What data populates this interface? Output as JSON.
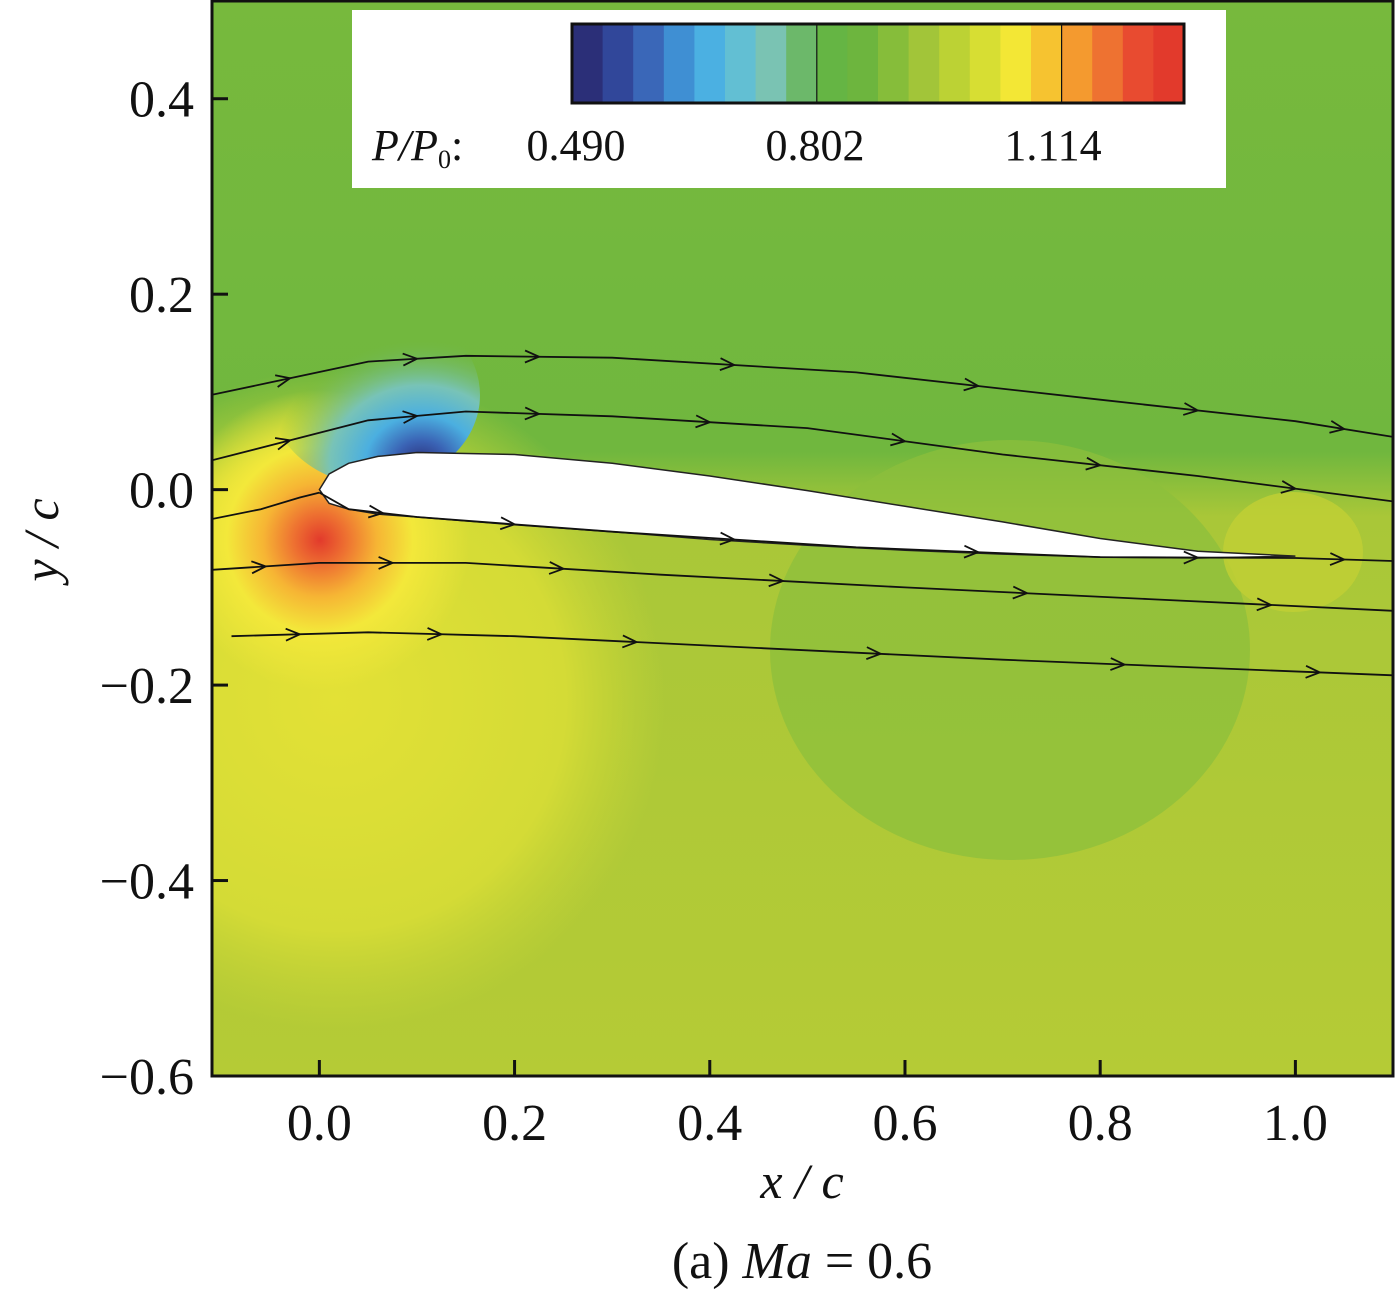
{
  "chart_data": {
    "type": "contour",
    "xlabel": "x / c",
    "ylabel": "y / c",
    "caption": "(a) Ma = 0.6",
    "caption_prefix": "(a) ",
    "caption_italic": "Ma",
    "caption_suffix": " = 0.6",
    "xlim": [
      -0.11,
      1.1
    ],
    "ylim": [
      -0.6,
      0.5
    ],
    "x_ticks": [
      0.0,
      0.2,
      0.4,
      0.6,
      0.8,
      1.0
    ],
    "x_tick_labels": [
      "0.0",
      "0.2",
      "0.4",
      "0.6",
      "0.8",
      "1.0"
    ],
    "y_ticks": [
      0.4,
      0.2,
      0.0,
      -0.2,
      -0.4,
      -0.6
    ],
    "y_tick_labels": [
      "0.4",
      "0.2",
      "0.0",
      "−0.2",
      "−0.4",
      "−0.6"
    ],
    "colorbar": {
      "label_main": "P/P",
      "label_sub": "0",
      "label_suffix": ":",
      "ticks": [
        "0.490",
        "0.802",
        "1.114"
      ],
      "min": 0.49,
      "max": 1.27,
      "colors": [
        "#2b2f78",
        "#31479a",
        "#3a67b8",
        "#3f8fd3",
        "#4bb0e2",
        "#62bfd3",
        "#7ac3b3",
        "#6cb86a",
        "#65b544",
        "#6db53e",
        "#86bd3a",
        "#a2c539",
        "#bcd234",
        "#d7de33",
        "#f3e735",
        "#f6c330",
        "#f49a2f",
        "#ee7231",
        "#e84b30",
        "#e23a2c"
      ]
    },
    "field": {
      "freestream": "#73b83d",
      "lower_region": "#b5cc37",
      "stagnation_peak": "#e8402e",
      "suction_peak": "#2b2f78"
    },
    "airfoil_surface": {
      "upper": [
        [
          0.0,
          0.0
        ],
        [
          0.01,
          0.016
        ],
        [
          0.03,
          0.027
        ],
        [
          0.06,
          0.034
        ],
        [
          0.1,
          0.038
        ],
        [
          0.2,
          0.036
        ],
        [
          0.3,
          0.027
        ],
        [
          0.4,
          0.014
        ],
        [
          0.5,
          -0.001
        ],
        [
          0.6,
          -0.017
        ],
        [
          0.7,
          -0.033
        ],
        [
          0.8,
          -0.05
        ],
        [
          0.9,
          -0.063
        ],
        [
          1.0,
          -0.068
        ]
      ],
      "lower": [
        [
          0.0,
          0.0
        ],
        [
          0.01,
          -0.014
        ],
        [
          0.03,
          -0.02
        ],
        [
          0.06,
          -0.025
        ],
        [
          0.1,
          -0.028
        ],
        [
          0.2,
          -0.036
        ],
        [
          0.3,
          -0.043
        ],
        [
          0.4,
          -0.051
        ],
        [
          0.5,
          -0.057
        ],
        [
          0.6,
          -0.062
        ],
        [
          0.7,
          -0.066
        ],
        [
          0.8,
          -0.069
        ],
        [
          0.9,
          -0.07
        ],
        [
          1.0,
          -0.068
        ]
      ]
    },
    "streamlines": [
      [
        [
          -0.11,
          0.097
        ],
        [
          0.05,
          0.131
        ],
        [
          0.15,
          0.137
        ],
        [
          0.3,
          0.135
        ],
        [
          0.55,
          0.12
        ],
        [
          0.8,
          0.092
        ],
        [
          1.0,
          0.07
        ],
        [
          1.1,
          0.054
        ]
      ],
      [
        [
          -0.11,
          0.03
        ],
        [
          0.05,
          0.071
        ],
        [
          0.15,
          0.08
        ],
        [
          0.3,
          0.075
        ],
        [
          0.5,
          0.063
        ],
        [
          0.7,
          0.036
        ],
        [
          0.9,
          0.014
        ],
        [
          1.1,
          -0.012
        ]
      ],
      [
        [
          -0.11,
          -0.03
        ],
        [
          -0.06,
          -0.02
        ],
        [
          -0.02,
          -0.008
        ],
        [
          0.0,
          -0.003
        ]
      ],
      [
        [
          0.0,
          -0.003
        ],
        [
          0.03,
          -0.02
        ],
        [
          0.1,
          -0.028
        ],
        [
          0.3,
          -0.043
        ],
        [
          0.55,
          -0.059
        ],
        [
          0.8,
          -0.069
        ],
        [
          1.0,
          -0.07
        ],
        [
          1.1,
          -0.073
        ]
      ],
      [
        [
          -0.11,
          -0.082
        ],
        [
          0.0,
          -0.075
        ],
        [
          0.15,
          -0.075
        ],
        [
          0.35,
          -0.087
        ],
        [
          0.6,
          -0.1
        ],
        [
          0.85,
          -0.112
        ],
        [
          1.1,
          -0.124
        ]
      ],
      [
        [
          -0.09,
          -0.15
        ],
        [
          0.05,
          -0.146
        ],
        [
          0.2,
          -0.15
        ],
        [
          0.45,
          -0.162
        ],
        [
          0.7,
          -0.174
        ],
        [
          0.95,
          -0.184
        ],
        [
          1.1,
          -0.19
        ]
      ]
    ]
  }
}
